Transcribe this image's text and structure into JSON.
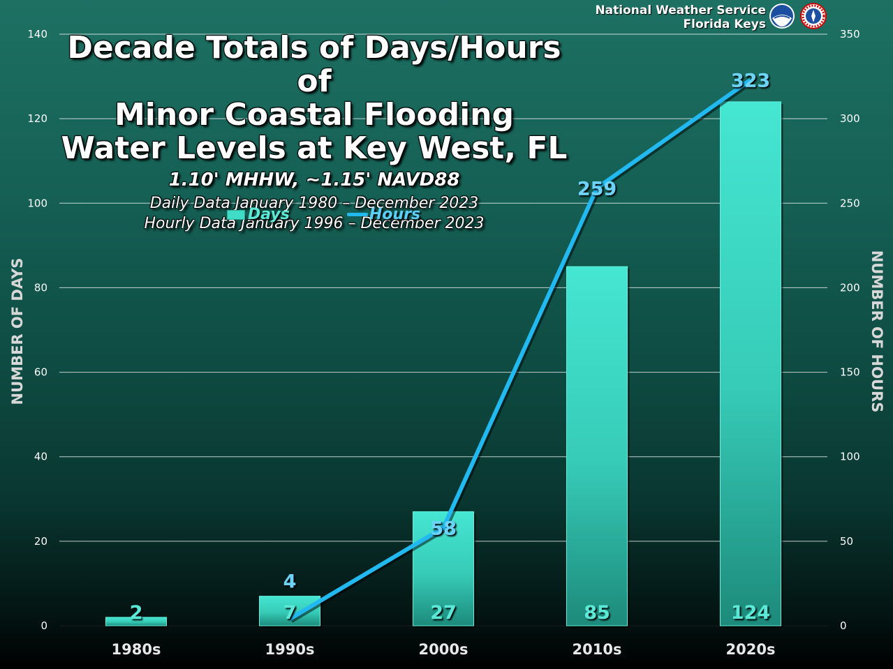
{
  "agency": {
    "line1": "National Weather Service",
    "line2": "Florida Keys"
  },
  "title_lines": [
    "Decade Totals of Days/Hours of",
    "Minor Coastal Flooding",
    "Water Levels at Key West, FL"
  ],
  "subtitle_lines": [
    "1.10' MHHW, ~1.15' NAVD88",
    "Daily Data January 1980 – December 2023",
    "Hourly Data January 1996 – December 2023"
  ],
  "chart_data": {
    "type": "bar",
    "categories": [
      "1980s",
      "1990s",
      "2000s",
      "2010s",
      "2020s"
    ],
    "series": [
      {
        "name": "Days",
        "type": "bar",
        "axis": "left",
        "values": [
          2,
          7,
          27,
          85,
          124
        ],
        "color": "#3fdcc8"
      },
      {
        "name": "Hours",
        "type": "line",
        "axis": "right",
        "values": [
          null,
          4,
          58,
          259,
          323
        ],
        "color": "#22b8f0"
      }
    ],
    "ylabel_left": "NUMBER OF DAYS",
    "ylabel_right": "NUMBER OF HOURS",
    "ylim_left": [
      0,
      140
    ],
    "ylim_right": [
      0,
      350
    ],
    "yticks_left": [
      0,
      20,
      40,
      60,
      80,
      100,
      120,
      140
    ],
    "yticks_right": [
      0,
      50,
      100,
      150,
      200,
      250,
      300,
      350
    ],
    "grid": true,
    "legend": "top-left"
  },
  "colors": {
    "bar": "#3fdcc8",
    "line": "#22b8f0",
    "bar_label": "#5ce8d6",
    "line_label": "#6dd3f8",
    "grid": "#ffffff"
  }
}
